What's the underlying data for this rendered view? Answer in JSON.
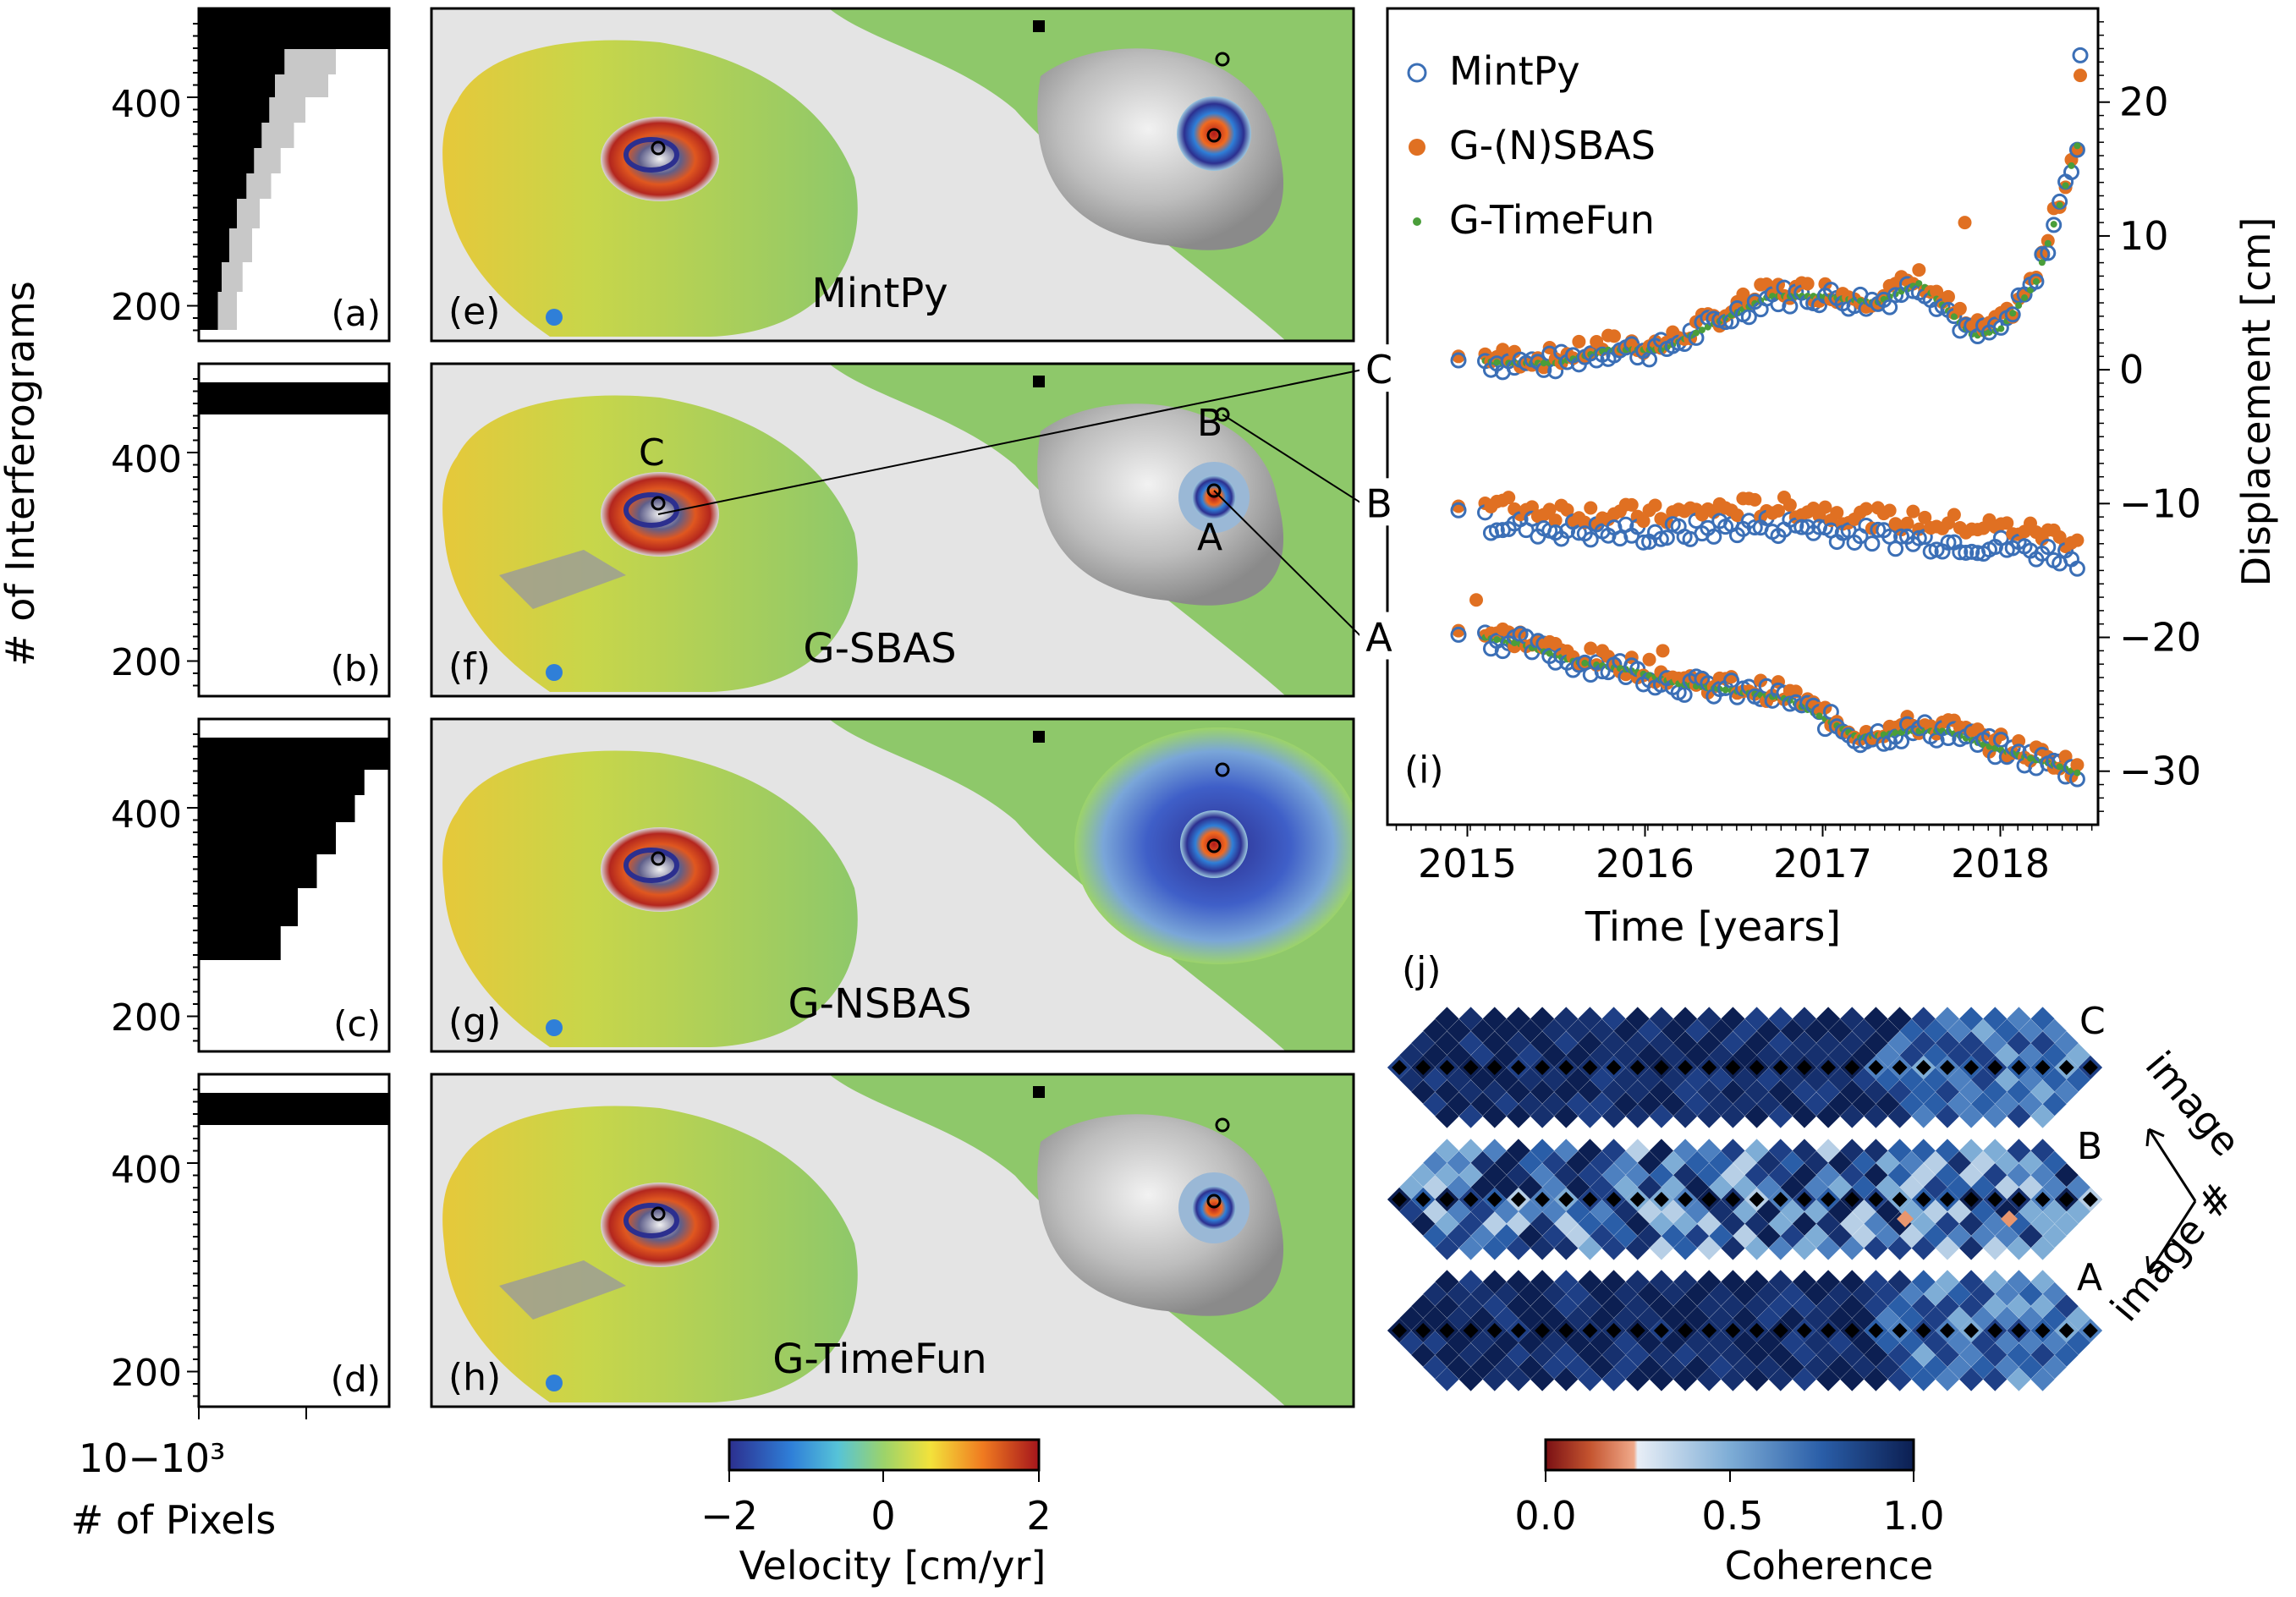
{
  "histograms": {
    "y_label": "# of Interferograms",
    "x_label": "# of Pixels",
    "x_ticks": [
      "10−1",
      "10³"
    ],
    "y_ticks": [
      "400",
      "200"
    ],
    "panels": [
      {
        "tag": "(a)"
      },
      {
        "tag": "(b)"
      },
      {
        "tag": "(c)"
      },
      {
        "tag": "(d)"
      }
    ]
  },
  "maps": {
    "panels": [
      {
        "tag": "(e)",
        "method": "MintPy"
      },
      {
        "tag": "(f)",
        "method": "G-SBAS"
      },
      {
        "tag": "(g)",
        "method": "G-NSBAS"
      },
      {
        "tag": "(h)",
        "method": "G-TimeFun"
      }
    ],
    "point_labels": {
      "A": "A",
      "B": "B",
      "C": "C"
    },
    "colorbar": {
      "label": "Velocity [cm/yr]",
      "ticks": [
        "−2",
        "0",
        "2"
      ]
    }
  },
  "coherence": {
    "tag": "(j)",
    "rows": [
      "C",
      "B",
      "A"
    ],
    "axis_labels": [
      "image",
      "image #"
    ],
    "colorbar": {
      "label": "Coherence",
      "ticks": [
        "0.0",
        "0.5",
        "1.0"
      ]
    }
  },
  "chart_data": {
    "type": "scatter",
    "tag": "(i)",
    "xlabel": "Time [years]",
    "ylabel": "Displacement [cm]",
    "xlim": [
      2014.55,
      2018.55
    ],
    "ylim": [
      -34,
      27
    ],
    "x_ticks": [
      "2015",
      "2016",
      "2017",
      "2018"
    ],
    "y_ticks": [
      "20",
      "10",
      "0",
      "−10",
      "−20",
      "−30"
    ],
    "legend_position": "top-left",
    "offset_labels": [
      "C",
      "B",
      "A"
    ],
    "series": [
      {
        "name": "MintPy",
        "color": "#3b6fb6",
        "marker": "open-circle"
      },
      {
        "name": "G-(N)SBAS",
        "color": "#e07022",
        "marker": "filled-circle"
      },
      {
        "name": "G-TimeFun",
        "color": "#4a9e3a",
        "marker": "dot"
      }
    ],
    "curves": {
      "C": [
        [
          2014.9,
          1.0
        ],
        [
          2015.2,
          0.5
        ],
        [
          2015.5,
          0.5
        ],
        [
          2015.8,
          1.5
        ],
        [
          2016.1,
          1.5
        ],
        [
          2016.4,
          3.5
        ],
        [
          2016.7,
          5.5
        ],
        [
          2017.0,
          5.5
        ],
        [
          2017.3,
          5.0
        ],
        [
          2017.55,
          6.5
        ],
        [
          2017.7,
          4.5
        ],
        [
          2017.85,
          2.5
        ],
        [
          2018.0,
          3.0
        ],
        [
          2018.2,
          6.5
        ],
        [
          2018.35,
          13.0
        ],
        [
          2018.45,
          17.5
        ]
      ],
      "B": [
        [
          2014.9,
          -10.2
        ],
        [
          2015.3,
          -10.8
        ],
        [
          2015.7,
          -11.2
        ],
        [
          2016.1,
          -11.4
        ],
        [
          2016.5,
          -10.8
        ],
        [
          2016.9,
          -10.8
        ],
        [
          2017.3,
          -11.6
        ],
        [
          2017.7,
          -12.0
        ],
        [
          2018.1,
          -12.4
        ],
        [
          2018.45,
          -13.2
        ]
      ],
      "A": [
        [
          2014.9,
          -19.5
        ],
        [
          2015.3,
          -20.5
        ],
        [
          2015.6,
          -21.8
        ],
        [
          2015.9,
          -22.4
        ],
        [
          2016.2,
          -23.5
        ],
        [
          2016.5,
          -24.0
        ],
        [
          2016.8,
          -24.6
        ],
        [
          2017.0,
          -26.0
        ],
        [
          2017.2,
          -27.5
        ],
        [
          2017.5,
          -27.0
        ],
        [
          2017.7,
          -27.0
        ],
        [
          2017.9,
          -28.0
        ],
        [
          2018.1,
          -28.8
        ],
        [
          2018.3,
          -29.5
        ],
        [
          2018.45,
          -30.2
        ]
      ]
    },
    "outliers": [
      {
        "x": 2018.45,
        "y": 23.5,
        "series": 0
      },
      {
        "x": 2018.45,
        "y": 22.0,
        "series": 1
      },
      {
        "x": 2017.8,
        "y": 11.0,
        "series": 1
      },
      {
        "x": 2015.05,
        "y": -17.2,
        "series": 1
      },
      {
        "x": 2016.1,
        "y": -21.0,
        "series": 1
      }
    ]
  }
}
